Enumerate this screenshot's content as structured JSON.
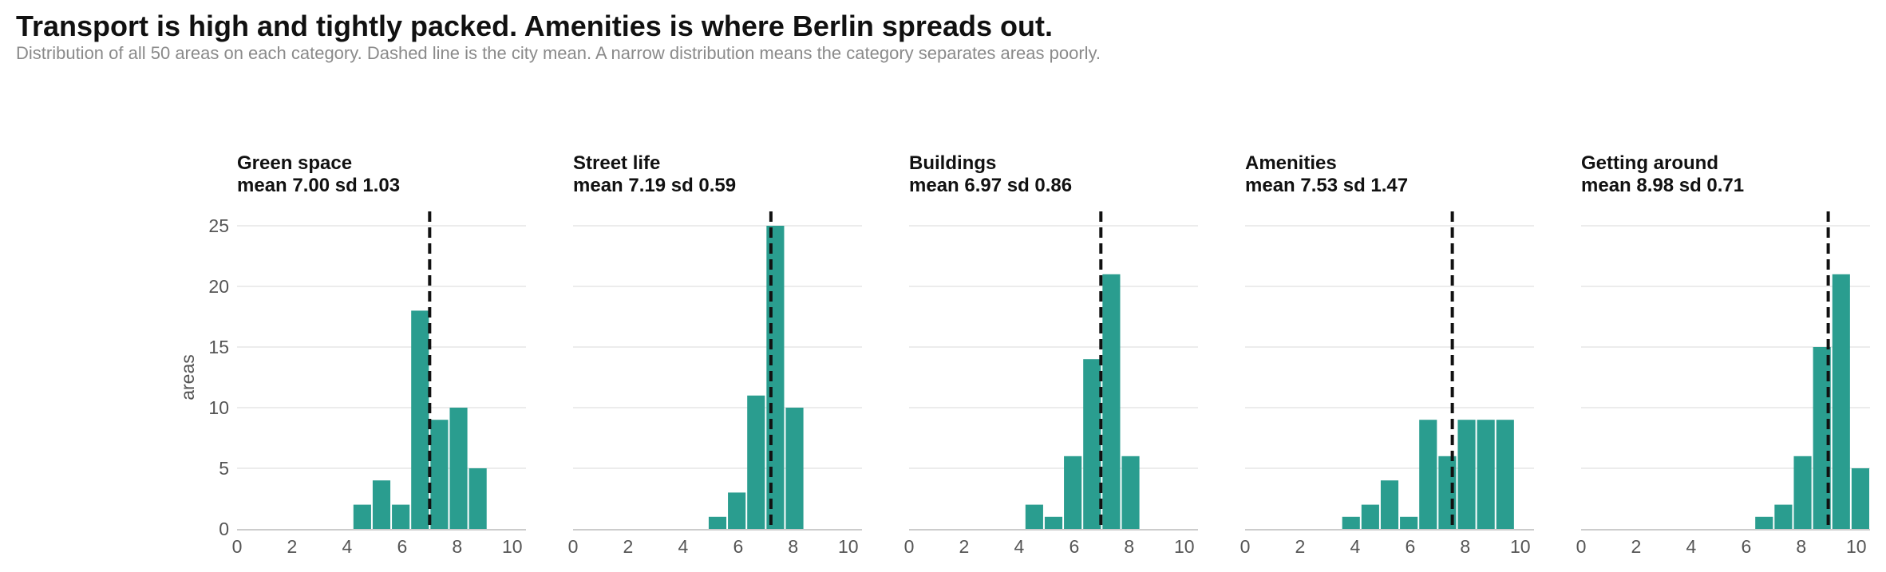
{
  "title": "Transport is high and tightly packed. Amenities is where Berlin spreads out.",
  "subtitle": "Distribution of all 50 areas on each category. Dashed line is the city mean. A narrow distribution means the category separates areas poorly.",
  "colors": {
    "bar": "#2a9d8f",
    "mean_line": "#111111",
    "grid": "#e6e6e6",
    "axis": "#cccccc",
    "tick_text": "#555555"
  },
  "chart_data": [
    {
      "type": "bar",
      "panel_title": "Green space",
      "stats_label": "mean 7.00  sd 1.03",
      "mean": 7.0,
      "ylabel": "areas",
      "xlim": [
        0,
        10.5
      ],
      "ylim": [
        0,
        25
      ],
      "x_ticks": [
        0,
        2,
        4,
        6,
        8,
        10
      ],
      "y_ticks": [
        0,
        5,
        10,
        15,
        20,
        25
      ],
      "bin_width": 0.7,
      "bin_starts": [
        4.2,
        4.9,
        5.6,
        6.3,
        7.0,
        7.7,
        8.4
      ],
      "values": [
        2,
        4,
        2,
        18,
        9,
        10,
        5
      ]
    },
    {
      "type": "bar",
      "panel_title": "Street life",
      "stats_label": "mean 7.19  sd 0.59",
      "mean": 7.19,
      "xlim": [
        0,
        10.5
      ],
      "ylim": [
        0,
        25
      ],
      "x_ticks": [
        0,
        2,
        4,
        6,
        8,
        10
      ],
      "y_ticks": [
        0,
        5,
        10,
        15,
        20,
        25
      ],
      "bin_width": 0.7,
      "bin_starts": [
        4.9,
        5.6,
        6.3,
        7.0,
        7.7
      ],
      "values": [
        1,
        3,
        11,
        25,
        10
      ]
    },
    {
      "type": "bar",
      "panel_title": "Buildings",
      "stats_label": "mean 6.97  sd 0.86",
      "mean": 6.97,
      "xlim": [
        0,
        10.5
      ],
      "ylim": [
        0,
        25
      ],
      "x_ticks": [
        0,
        2,
        4,
        6,
        8,
        10
      ],
      "y_ticks": [
        0,
        5,
        10,
        15,
        20,
        25
      ],
      "bin_width": 0.7,
      "bin_starts": [
        4.2,
        4.9,
        5.6,
        6.3,
        7.0,
        7.7
      ],
      "values": [
        2,
        1,
        6,
        14,
        21,
        6
      ]
    },
    {
      "type": "bar",
      "panel_title": "Amenities",
      "stats_label": "mean 7.53  sd 1.47",
      "mean": 7.53,
      "xlim": [
        0,
        10.5
      ],
      "ylim": [
        0,
        25
      ],
      "x_ticks": [
        0,
        2,
        4,
        6,
        8,
        10
      ],
      "y_ticks": [
        0,
        5,
        10,
        15,
        20,
        25
      ],
      "bin_width": 0.7,
      "bin_starts": [
        3.5,
        4.2,
        4.9,
        5.6,
        6.3,
        7.0,
        7.7,
        8.4,
        9.1
      ],
      "values": [
        1,
        2,
        4,
        1,
        9,
        6,
        9,
        9,
        9
      ]
    },
    {
      "type": "bar",
      "panel_title": "Getting around",
      "stats_label": "mean 8.98  sd 0.71",
      "mean": 8.98,
      "xlim": [
        0,
        10.5
      ],
      "ylim": [
        0,
        25
      ],
      "x_ticks": [
        0,
        2,
        4,
        6,
        8,
        10
      ],
      "y_ticks": [
        0,
        5,
        10,
        15,
        20,
        25
      ],
      "bin_width": 0.7,
      "bin_starts": [
        6.3,
        7.0,
        7.7,
        8.4,
        9.1,
        9.8
      ],
      "values": [
        1,
        2,
        6,
        15,
        21,
        5
      ]
    }
  ]
}
